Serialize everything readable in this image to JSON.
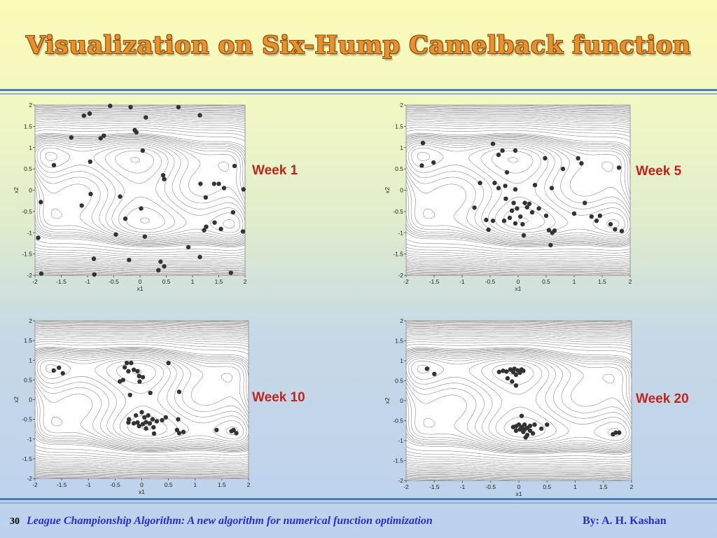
{
  "slide": {
    "title": "Visualization on Six-Hump Camelback function",
    "page_number": "30",
    "footer_text": "League Championship Algorithm:  A new algorithm for numerical function optimization",
    "footer_author": "By: A. H. Kashan",
    "title_color": "#e8912a",
    "label_color": "#c0241d",
    "footer_color": "#2b2bd1",
    "marker_color": "#333333"
  },
  "chart_data": [
    {
      "type": "scatter",
      "label": "Week 1",
      "xlabel": "x1",
      "ylabel": "x2",
      "xlim": [
        -2,
        2
      ],
      "ylim": [
        -2,
        2
      ],
      "xticks": [
        "-2",
        "-1.5",
        "-1",
        "-0.5",
        "0",
        "0.5",
        "1",
        "1.5",
        "2"
      ],
      "yticks": [
        "2",
        "1.5",
        "1",
        "0.5",
        "0",
        "-0.5",
        "-1",
        "-1.5",
        "-2"
      ],
      "background": "contour",
      "points": [
        [
          -0.57,
          1.98
        ],
        [
          -0.18,
          1.95
        ],
        [
          0.73,
          1.95
        ],
        [
          -1.07,
          1.75
        ],
        [
          -0.96,
          1.8
        ],
        [
          0.11,
          1.71
        ],
        [
          1.14,
          1.76
        ],
        [
          -1.31,
          1.24
        ],
        [
          -0.75,
          1.22
        ],
        [
          -0.69,
          1.28
        ],
        [
          -0.1,
          1.41
        ],
        [
          -0.07,
          1.36
        ],
        [
          0.05,
          0.93
        ],
        [
          -1.64,
          0.59
        ],
        [
          -0.95,
          0.67
        ],
        [
          0.44,
          0.35
        ],
        [
          0.46,
          0.26
        ],
        [
          -0.94,
          -0.09
        ],
        [
          -0.38,
          -0.15
        ],
        [
          -1.11,
          -0.36
        ],
        [
          1.15,
          0.15
        ],
        [
          1.41,
          0.15
        ],
        [
          1.5,
          0.15
        ],
        [
          1.6,
          0.05
        ],
        [
          1.25,
          -0.17
        ],
        [
          1.8,
          0.57
        ],
        [
          1.97,
          0.02
        ],
        [
          0.02,
          -0.43
        ],
        [
          -0.28,
          -0.67
        ],
        [
          1.42,
          -0.76
        ],
        [
          1.54,
          -0.91
        ],
        [
          1.77,
          -0.52
        ],
        [
          1.26,
          -0.86
        ],
        [
          1.22,
          -0.94
        ],
        [
          1.96,
          -0.97
        ],
        [
          -1.89,
          -0.28
        ],
        [
          -0.46,
          -1.04
        ],
        [
          0.09,
          -1.09
        ],
        [
          -1.94,
          -1.12
        ],
        [
          0.92,
          -1.34
        ],
        [
          1.14,
          -1.57
        ],
        [
          -0.88,
          -1.61
        ],
        [
          -0.21,
          -1.64
        ],
        [
          0.39,
          -1.68
        ],
        [
          0.46,
          -1.79
        ],
        [
          0.35,
          -1.88
        ],
        [
          1.73,
          -1.94
        ],
        [
          -1.88,
          -1.96
        ],
        [
          -0.87,
          -1.98
        ]
      ]
    },
    {
      "type": "scatter",
      "label": "Week 5",
      "xlabel": "x1",
      "ylabel": "x2",
      "xlim": [
        -2,
        2
      ],
      "ylim": [
        -2,
        2
      ],
      "xticks": [
        "-2",
        "-1.5",
        "-1",
        "-0.5",
        "0",
        "0.5",
        "1",
        "1.5",
        "2"
      ],
      "yticks": [
        "2",
        "1.5",
        "1",
        "0.5",
        "0",
        "-0.5",
        "-1",
        "-1.5",
        "-2"
      ],
      "background": "contour",
      "points": [
        [
          -1.7,
          1.11
        ],
        [
          -1.72,
          0.58
        ],
        [
          -1.51,
          0.65
        ],
        [
          -0.45,
          1.09
        ],
        [
          -0.28,
          0.93
        ],
        [
          -0.35,
          0.83
        ],
        [
          -0.05,
          0.93
        ],
        [
          0.48,
          0.75
        ],
        [
          1.07,
          0.75
        ],
        [
          1.13,
          0.63
        ],
        [
          -0.2,
          0.42
        ],
        [
          0.8,
          0.5
        ],
        [
          1.8,
          0.53
        ],
        [
          -0.68,
          0.17
        ],
        [
          -0.42,
          0.17
        ],
        [
          -0.35,
          0.05
        ],
        [
          -0.23,
          0.1
        ],
        [
          0.3,
          0.12
        ],
        [
          0.6,
          0.05
        ],
        [
          -0.78,
          -0.41
        ],
        [
          -0.22,
          -0.2
        ],
        [
          -0.05,
          0.02
        ],
        [
          -0.08,
          -0.3
        ],
        [
          -0.02,
          -0.43
        ],
        [
          -0.11,
          -0.48
        ],
        [
          0.04,
          -0.62
        ],
        [
          0.12,
          -0.3
        ],
        [
          0.2,
          -0.32
        ],
        [
          0.16,
          -0.4
        ],
        [
          0.25,
          -0.52
        ],
        [
          0.37,
          -0.43
        ],
        [
          0.5,
          -0.6
        ],
        [
          1.0,
          -0.55
        ],
        [
          1.19,
          -0.3
        ],
        [
          1.31,
          -0.62
        ],
        [
          1.4,
          -0.72
        ],
        [
          1.46,
          -0.6
        ],
        [
          1.65,
          -0.8
        ],
        [
          1.73,
          -0.92
        ],
        [
          1.85,
          -0.96
        ],
        [
          -0.57,
          -0.7
        ],
        [
          -0.45,
          -0.72
        ],
        [
          -0.25,
          -0.72
        ],
        [
          -0.15,
          -0.65
        ],
        [
          -0.05,
          -0.78
        ],
        [
          0.08,
          -0.8
        ],
        [
          -0.53,
          -0.93
        ],
        [
          0.1,
          -1.06
        ],
        [
          0.55,
          -0.94
        ],
        [
          0.61,
          -1.0
        ],
        [
          0.65,
          -0.95
        ],
        [
          0.58,
          -1.29
        ]
      ]
    },
    {
      "type": "scatter",
      "label": "Week 10",
      "xlabel": "x1",
      "ylabel": "x2",
      "xlim": [
        -2,
        2
      ],
      "ylim": [
        -2,
        2
      ],
      "xticks": [
        "-2",
        "-1.5",
        "-1",
        "-0.5",
        "0",
        "0.5",
        "1",
        "1.5",
        "2"
      ],
      "yticks": [
        "2",
        "1.5",
        "1",
        "0.5",
        "0",
        "-0.5",
        "-1",
        "-1.5",
        "-2"
      ],
      "background": "contour",
      "points": [
        [
          -1.65,
          0.74
        ],
        [
          -1.55,
          0.81
        ],
        [
          -1.48,
          0.67
        ],
        [
          -0.32,
          0.82
        ],
        [
          -0.28,
          0.93
        ],
        [
          -0.2,
          0.93
        ],
        [
          -0.15,
          0.76
        ],
        [
          -0.25,
          0.72
        ],
        [
          -0.08,
          0.72
        ],
        [
          -0.05,
          0.6
        ],
        [
          0.02,
          0.57
        ],
        [
          -0.04,
          0.46
        ],
        [
          -0.35,
          0.5
        ],
        [
          -0.41,
          0.46
        ],
        [
          0.5,
          0.93
        ],
        [
          -0.22,
          0.12
        ],
        [
          0.16,
          0.17
        ],
        [
          0.7,
          0.2
        ],
        [
          -0.24,
          -0.5
        ],
        [
          -0.11,
          -0.4
        ],
        [
          0.0,
          -0.32
        ],
        [
          0.05,
          -0.45
        ],
        [
          0.12,
          -0.4
        ],
        [
          -0.08,
          -0.58
        ],
        [
          0.02,
          -0.62
        ],
        [
          0.08,
          -0.57
        ],
        [
          0.15,
          -0.6
        ],
        [
          0.2,
          -0.5
        ],
        [
          0.28,
          -0.55
        ],
        [
          0.22,
          -0.7
        ],
        [
          0.08,
          -0.73
        ],
        [
          -0.05,
          -0.67
        ],
        [
          -0.15,
          -0.6
        ],
        [
          -0.25,
          -0.58
        ],
        [
          0.38,
          -0.52
        ],
        [
          0.45,
          -0.45
        ],
        [
          0.68,
          -0.5
        ],
        [
          0.66,
          -0.77
        ],
        [
          0.7,
          -0.85
        ],
        [
          0.78,
          -0.82
        ],
        [
          0.23,
          -0.86
        ],
        [
          1.4,
          -0.77
        ],
        [
          1.68,
          -0.8
        ],
        [
          1.72,
          -0.77
        ],
        [
          1.77,
          -0.85
        ]
      ]
    },
    {
      "type": "scatter",
      "label": "Week 20",
      "xlabel": "x1",
      "ylabel": "x2",
      "xlim": [
        -2,
        2
      ],
      "ylim": [
        -2,
        2
      ],
      "xticks": [
        "-2",
        "-1.5",
        "-1",
        "-0.5",
        "0",
        "0.5",
        "1",
        "1.5",
        "2"
      ],
      "yticks": [
        "2",
        "1.5",
        "1",
        "0.5",
        "0",
        "-0.5",
        "-1",
        "-1.5",
        "-2"
      ],
      "background": "contour",
      "points": [
        [
          -1.63,
          0.8
        ],
        [
          -1.5,
          0.67
        ],
        [
          -0.35,
          0.72
        ],
        [
          -0.28,
          0.75
        ],
        [
          -0.22,
          0.73
        ],
        [
          -0.15,
          0.78
        ],
        [
          -0.08,
          0.8
        ],
        [
          -0.02,
          0.76
        ],
        [
          0.02,
          0.7
        ],
        [
          0.05,
          0.78
        ],
        [
          0.08,
          0.75
        ],
        [
          -0.05,
          0.65
        ],
        [
          -0.1,
          0.72
        ],
        [
          -0.2,
          0.56
        ],
        [
          -0.12,
          0.48
        ],
        [
          -0.05,
          0.38
        ],
        [
          0.05,
          -0.38
        ],
        [
          -0.05,
          -0.64
        ],
        [
          0.0,
          -0.6
        ],
        [
          0.05,
          -0.66
        ],
        [
          0.1,
          -0.6
        ],
        [
          0.15,
          -0.68
        ],
        [
          0.2,
          -0.63
        ],
        [
          -0.1,
          -0.66
        ],
        [
          0.02,
          -0.72
        ],
        [
          0.1,
          -0.72
        ],
        [
          -0.05,
          -0.75
        ],
        [
          0.08,
          -0.78
        ],
        [
          0.2,
          -0.75
        ],
        [
          0.28,
          -0.6
        ],
        [
          0.25,
          -0.82
        ],
        [
          0.15,
          -0.86
        ],
        [
          0.12,
          -0.92
        ],
        [
          0.4,
          -0.7
        ],
        [
          0.5,
          -0.6
        ],
        [
          1.72,
          -0.8
        ],
        [
          1.78,
          -0.8
        ],
        [
          1.67,
          -0.84
        ]
      ]
    }
  ]
}
